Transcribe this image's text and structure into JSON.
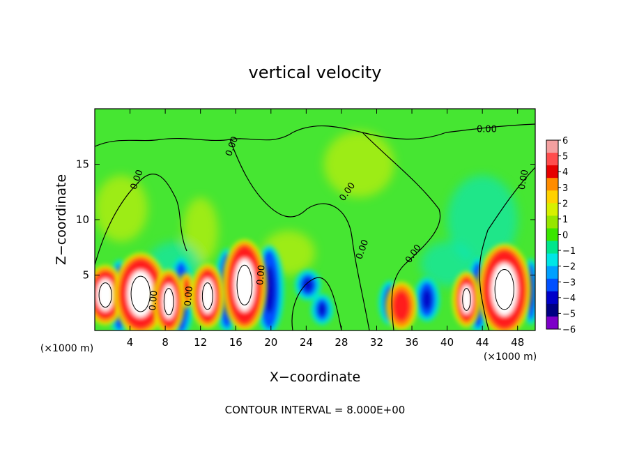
{
  "chart_data": {
    "type": "heatmap",
    "title": "vertical velocity",
    "xlabel": "X−coordinate",
    "ylabel": "Z−coordinate",
    "x_unit_left": "(×1000 m)",
    "x_unit_right": "(×1000 m)",
    "footer": "CONTOUR INTERVAL = 8.000E+00",
    "xlim": [
      0,
      50
    ],
    "ylim": [
      0,
      20
    ],
    "x_ticks": [
      4,
      8,
      12,
      16,
      20,
      24,
      28,
      32,
      36,
      40,
      44,
      48
    ],
    "x_tick_labels": [
      "4",
      "8",
      "12",
      "16",
      "20",
      "24",
      "28",
      "32",
      "36",
      "40",
      "44",
      "48"
    ],
    "y_ticks": [
      5,
      10,
      15
    ],
    "y_tick_labels": [
      "5",
      "10",
      "15"
    ],
    "contour_labels": [
      {
        "text": "0.00",
        "x": 44.5,
        "y": 18.1,
        "angle": 0
      },
      {
        "text": "0.00",
        "x": 4.8,
        "y": 13.6,
        "angle": -70
      },
      {
        "text": "0.00",
        "x": 15.6,
        "y": 16.6,
        "angle": -70
      },
      {
        "text": "0.00",
        "x": 28.7,
        "y": 12.5,
        "angle": -55
      },
      {
        "text": "0.00",
        "x": 48.7,
        "y": 13.6,
        "angle": -80
      },
      {
        "text": "0.00",
        "x": 30.4,
        "y": 7.3,
        "angle": -70
      },
      {
        "text": "0.00",
        "x": 36.2,
        "y": 6.9,
        "angle": -55
      },
      {
        "text": "0.00",
        "x": 18.9,
        "y": 5.0,
        "angle": -85
      },
      {
        "text": "0.00",
        "x": 6.7,
        "y": 2.7,
        "angle": -85
      },
      {
        "text": "0.00",
        "x": 10.7,
        "y": 3.1,
        "angle": -85
      }
    ],
    "colorbar": {
      "min": -6,
      "max": 6,
      "labels": [
        "6",
        "5",
        "4",
        "3",
        "2",
        "1",
        "0",
        "−1",
        "−2",
        "−3",
        "−4",
        "−5",
        "−6"
      ],
      "colors": [
        "#f4a0a0",
        "#ff4d4d",
        "#e60000",
        "#ff8c00",
        "#ffd200",
        "#d7f000",
        "#96e600",
        "#39e600",
        "#00e68c",
        "#00e6e6",
        "#00a0ff",
        "#0050ff",
        "#0000c8",
        "#000082",
        "#7d00c8"
      ]
    },
    "field_colors": {
      "background": "#46e632",
      "white": "#ffffff",
      "red": "#ff1a1a",
      "orange": "#ff8c00",
      "yellow": "#e6f000",
      "cyan": "#00e6d2",
      "blue": "#0050ff",
      "navy": "#0000c8"
    },
    "updrafts": [
      {
        "x": 1.2,
        "y": 3.2,
        "rx": 1.6,
        "ry": 2.2
      },
      {
        "x": 5.2,
        "y": 3.3,
        "rx": 2.4,
        "ry": 3.2
      },
      {
        "x": 8.4,
        "y": 2.6,
        "rx": 1.2,
        "ry": 2.4
      },
      {
        "x": 12.8,
        "y": 3.1,
        "rx": 1.3,
        "ry": 2.4
      },
      {
        "x": 17.0,
        "y": 4.1,
        "rx": 1.9,
        "ry": 3.6
      },
      {
        "x": 42.2,
        "y": 2.8,
        "rx": 1.0,
        "ry": 2.0
      },
      {
        "x": 46.5,
        "y": 3.7,
        "rx": 2.4,
        "ry": 3.6
      }
    ],
    "warm_cells": [
      {
        "x": 34.8,
        "y": 2.2,
        "rx": 1.3,
        "ry": 1.8
      },
      {
        "x": 10.4,
        "y": 3.6,
        "rx": 0.5,
        "ry": 1.2
      }
    ],
    "downdrafts": [
      {
        "x": 2.8,
        "y": 3.0,
        "rx": 0.9,
        "ry": 3.0
      },
      {
        "x": 9.8,
        "y": 3.0,
        "rx": 1.0,
        "ry": 3.2
      },
      {
        "x": 15.0,
        "y": 3.6,
        "rx": 1.0,
        "ry": 3.4
      },
      {
        "x": 19.8,
        "y": 3.7,
        "rx": 1.2,
        "ry": 3.6
      },
      {
        "x": 24.2,
        "y": 4.1,
        "rx": 1.0,
        "ry": 1.0
      },
      {
        "x": 25.8,
        "y": 1.9,
        "rx": 0.8,
        "ry": 1.0
      },
      {
        "x": 33.5,
        "y": 2.5,
        "rx": 0.8,
        "ry": 1.6
      },
      {
        "x": 37.7,
        "y": 2.8,
        "rx": 1.0,
        "ry": 1.6
      },
      {
        "x": 43.5,
        "y": 3.2,
        "rx": 0.9,
        "ry": 3.0
      },
      {
        "x": 49.5,
        "y": 3.5,
        "rx": 0.6,
        "ry": 2.6
      }
    ]
  }
}
